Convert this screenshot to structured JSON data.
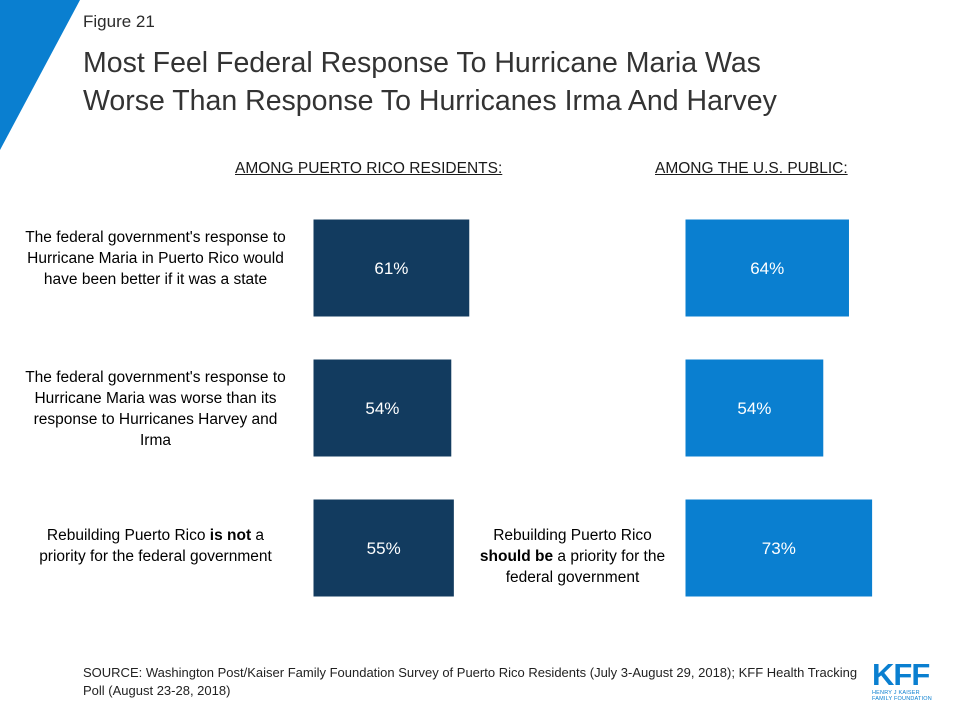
{
  "figure_label": "Figure 21",
  "title_line1": "Most Feel Federal Response To Hurricane Maria Was",
  "title_line2": "Worse Than Response To Hurricanes Irma And Harvey",
  "headers": {
    "pr": "AMONG PUERTO RICO RESIDENTS:",
    "us": "AMONG THE U.S. PUBLIC:"
  },
  "statements": {
    "s1": "The federal government's response to Hurricane Maria in Puerto Rico would have been better if it was a state",
    "s2": "The federal government's response to Hurricane Maria was worse than its response to Hurricanes Harvey and Irma",
    "s3": {
      "a": "Rebuilding Puerto Rico ",
      "b": "is",
      "c": " ",
      "d": "not",
      "e": " a priority for the federal government"
    },
    "s4": {
      "a": "Rebuilding Puerto Rico ",
      "b": "should be",
      "c": " a priority for the federal government"
    }
  },
  "colors": {
    "pr_bar": "#123b5f",
    "us_bar": "#0a7fd0",
    "accent": "#0a7fd0"
  },
  "chart_data": {
    "type": "bar",
    "series": [
      {
        "name": "AMONG PUERTO RICO RESIDENTS:",
        "values": [
          61,
          54,
          55
        ],
        "labels": [
          "61%",
          "54%",
          "55%"
        ]
      },
      {
        "name": "AMONG THE U.S. PUBLIC:",
        "values": [
          64,
          54,
          73
        ],
        "labels": [
          "64%",
          "54%",
          "73%"
        ]
      }
    ],
    "xlim": [
      0,
      100
    ]
  },
  "source": "SOURCE: Washington Post/Kaiser Family Foundation Survey of Puerto Rico Residents (July 3-August 29, 2018); KFF Health Tracking Poll (August 23-28, 2018)",
  "logo": {
    "letters": "KFF",
    "line1": "HENRY J KAISER",
    "line2": "FAMILY FOUNDATION"
  }
}
